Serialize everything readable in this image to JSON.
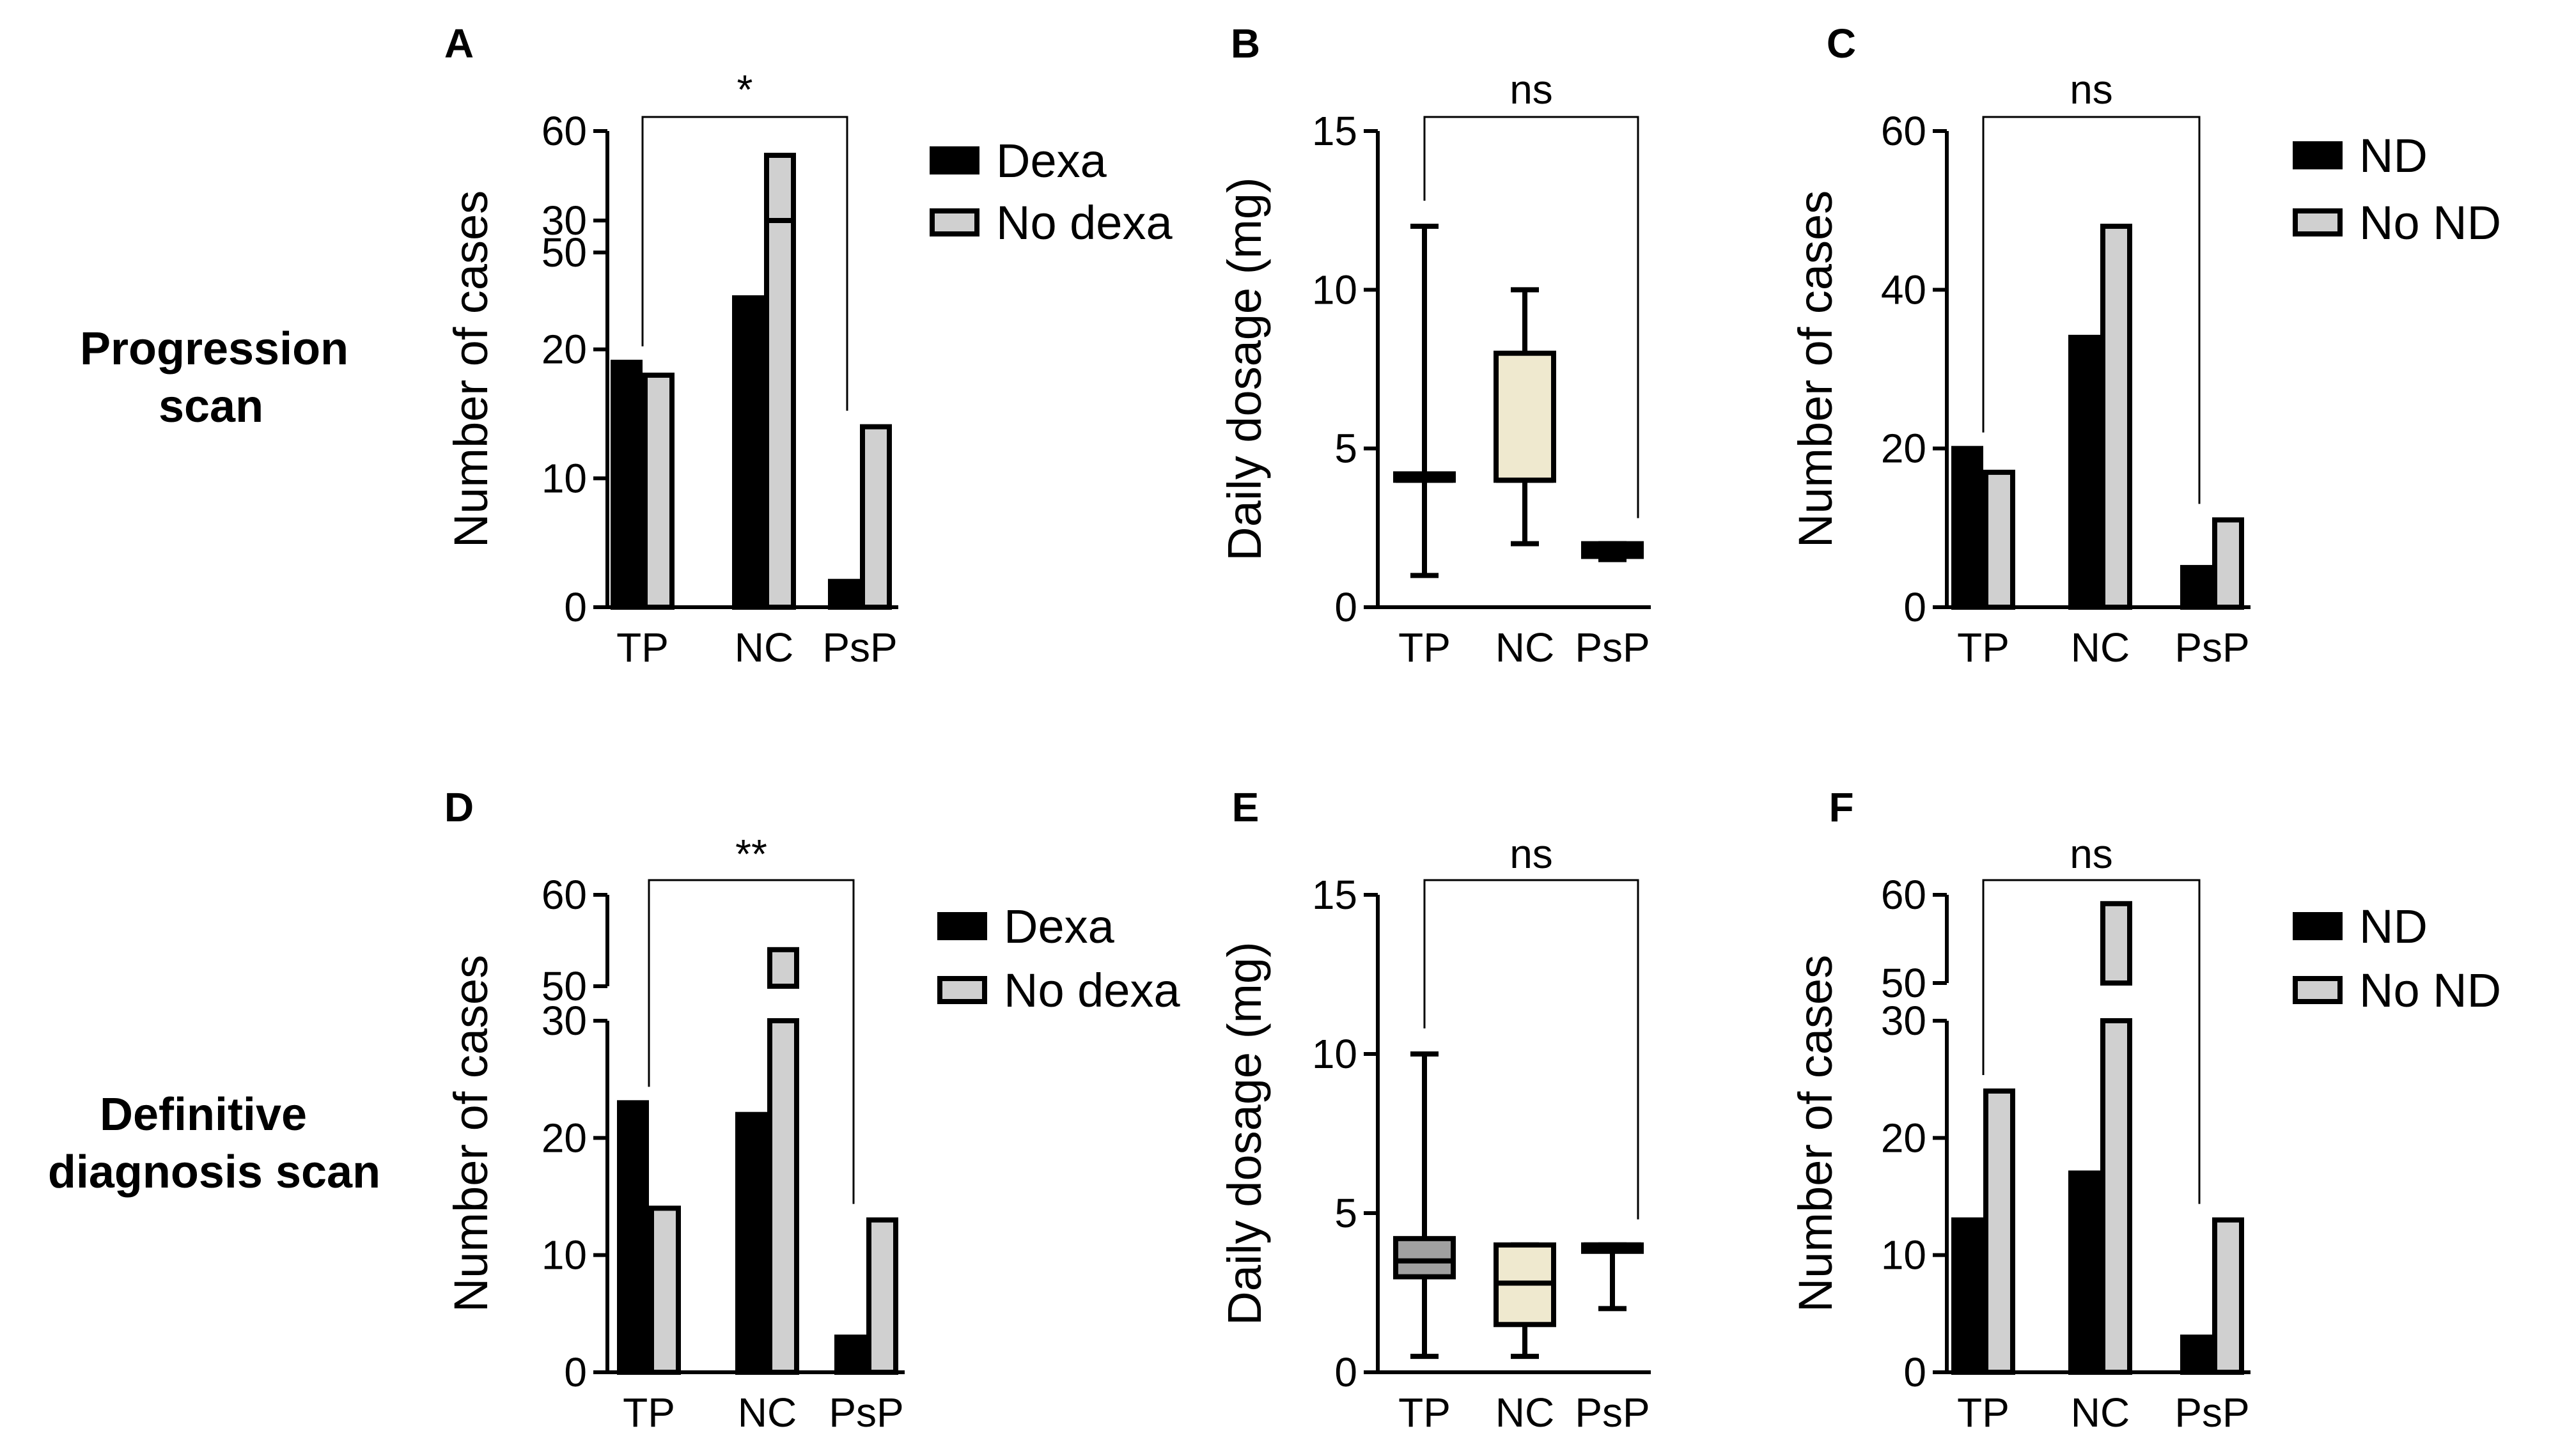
{
  "row_labels": {
    "top": [
      "Progression",
      "scan"
    ],
    "bottom": [
      "Definitive",
      "diagnosis scan"
    ]
  },
  "colors": {
    "dark": "#000000",
    "light": "#d0d0d0",
    "box_light": "#efe9cf",
    "box_grey": "#a0a0a0"
  },
  "chart_data": [
    {
      "id": "A",
      "letter": "A",
      "type": "bar",
      "broken_axis": true,
      "ylabel": "Number of cases",
      "categories": [
        "TP",
        "NC",
        "PsP"
      ],
      "series": [
        {
          "name": "Dexa",
          "values": [
            19,
            24,
            2
          ]
        },
        {
          "name": "No dexa",
          "values": [
            18,
            58,
            14
          ]
        }
      ],
      "ylim_lower": [
        0,
        30
      ],
      "ylim_upper": [
        50,
        60
      ],
      "lower_ticks": [
        "0",
        "10",
        "20",
        "30"
      ],
      "upper_ticks": [
        "50",
        "60"
      ],
      "legend": [
        "Dexa",
        "No dexa"
      ],
      "significance": "*"
    },
    {
      "id": "B",
      "letter": "B",
      "type": "box",
      "ylabel": "Daily dosage (mg)",
      "categories": [
        "TP",
        "NC",
        "PsP"
      ],
      "boxes": [
        {
          "min": 1,
          "q1": 4,
          "median": 4,
          "q3": 4.2,
          "max": 12
        },
        {
          "min": 2,
          "q1": 4,
          "median": 4,
          "q3": 8,
          "max": 10
        },
        {
          "min": 1.5,
          "q1": 1.6,
          "median": 1.8,
          "q3": 2,
          "max": 2
        }
      ],
      "ylim": [
        0,
        15
      ],
      "ticks": [
        "0",
        "5",
        "10",
        "15"
      ],
      "significance": "ns"
    },
    {
      "id": "C",
      "letter": "C",
      "type": "bar",
      "broken_axis": false,
      "ylabel": "Number of cases",
      "categories": [
        "TP",
        "NC",
        "PsP"
      ],
      "series": [
        {
          "name": "ND",
          "values": [
            20,
            34,
            5
          ]
        },
        {
          "name": "No ND",
          "values": [
            17,
            48,
            11
          ]
        }
      ],
      "ylim": [
        0,
        60
      ],
      "ticks": [
        "0",
        "20",
        "40",
        "60"
      ],
      "legend": [
        "ND",
        "No ND"
      ],
      "significance": "ns"
    },
    {
      "id": "D",
      "letter": "D",
      "type": "bar",
      "broken_axis": true,
      "ylabel": "Number of cases",
      "categories": [
        "TP",
        "NC",
        "PsP"
      ],
      "series": [
        {
          "name": "Dexa",
          "values": [
            23,
            22,
            3
          ]
        },
        {
          "name": "No dexa",
          "values": [
            14,
            54,
            13
          ]
        }
      ],
      "ylim_lower": [
        0,
        30
      ],
      "ylim_upper": [
        50,
        60
      ],
      "lower_ticks": [
        "0",
        "10",
        "20",
        "30"
      ],
      "upper_ticks": [
        "50",
        "60"
      ],
      "legend": [
        "Dexa",
        "No dexa"
      ],
      "significance": "**"
    },
    {
      "id": "E",
      "letter": "E",
      "type": "box",
      "ylabel": "Daily dosage (mg)",
      "categories": [
        "TP",
        "NC",
        "PsP"
      ],
      "boxes": [
        {
          "min": 0.5,
          "q1": 3,
          "median": 3.5,
          "q3": 4.2,
          "max": 10
        },
        {
          "min": 0.5,
          "q1": 1.5,
          "median": 2.8,
          "q3": 4,
          "max": 4
        },
        {
          "min": 2,
          "q1": 3.8,
          "median": 4,
          "q3": 4,
          "max": 4
        }
      ],
      "ylim": [
        0,
        15
      ],
      "ticks": [
        "0",
        "5",
        "10",
        "15"
      ],
      "significance": "ns"
    },
    {
      "id": "F",
      "letter": "F",
      "type": "bar",
      "broken_axis": true,
      "ylabel": "Number of cases",
      "categories": [
        "TP",
        "NC",
        "PsP"
      ],
      "series": [
        {
          "name": "ND",
          "values": [
            13,
            17,
            3
          ]
        },
        {
          "name": "No ND",
          "values": [
            24,
            59,
            13
          ]
        }
      ],
      "ylim_lower": [
        0,
        30
      ],
      "ylim_upper": [
        50,
        60
      ],
      "lower_ticks": [
        "0",
        "10",
        "20",
        "30"
      ],
      "upper_ticks": [
        "50",
        "60"
      ],
      "legend": [
        "ND",
        "No ND"
      ],
      "significance": "ns"
    }
  ]
}
